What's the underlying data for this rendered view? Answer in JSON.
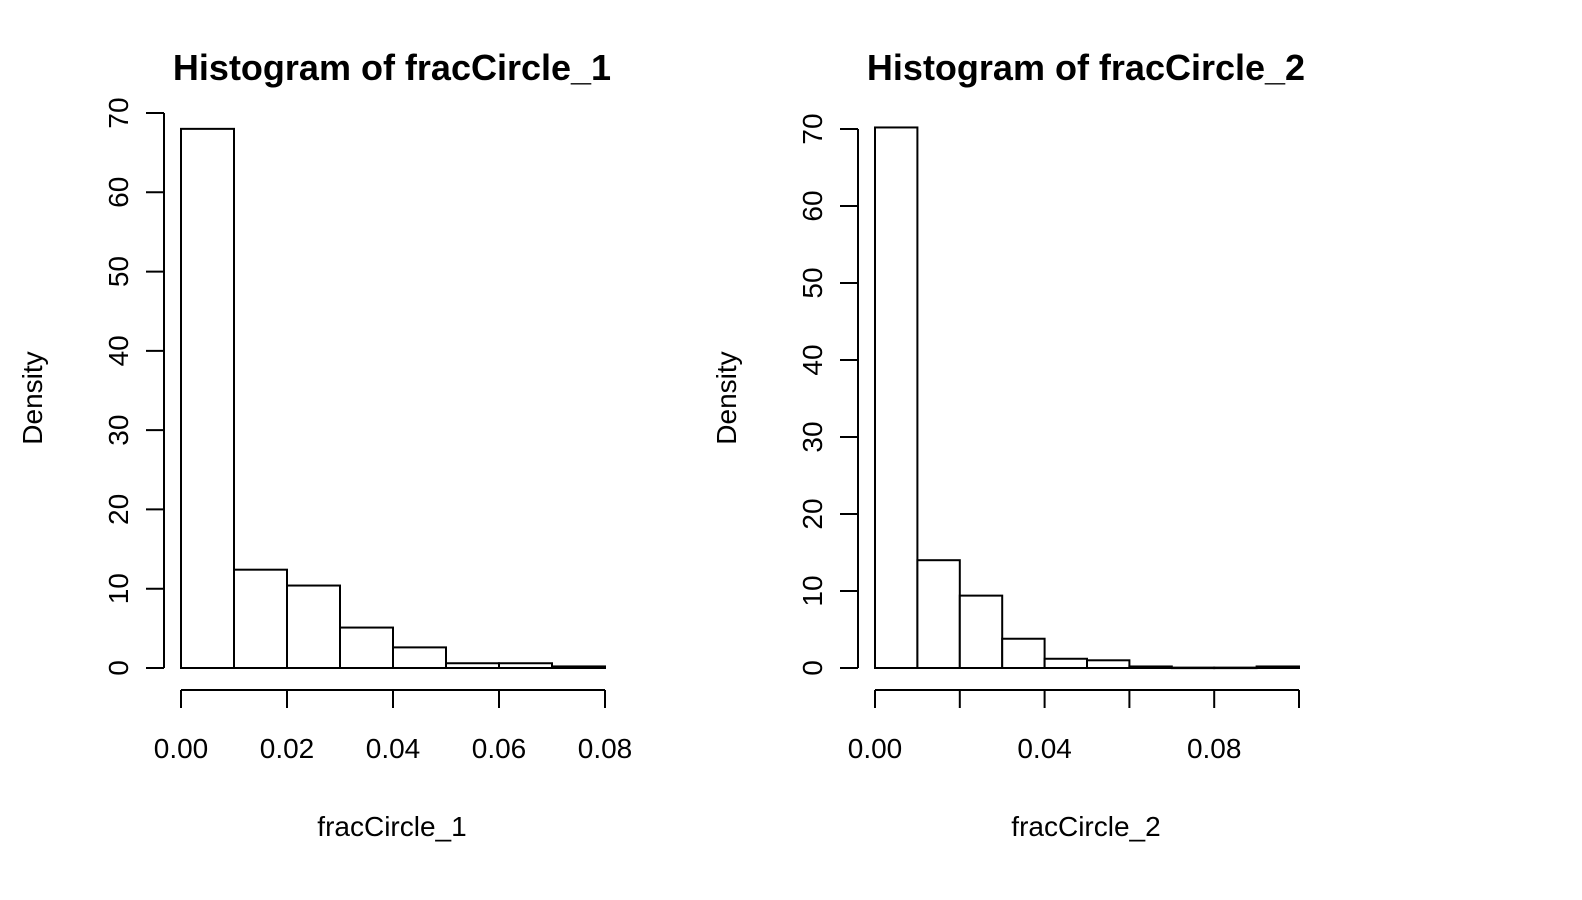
{
  "chart_data": [
    {
      "type": "bar",
      "title": "Histogram of fracCircle_1",
      "xlabel": "fracCircle_1",
      "ylabel": "Density",
      "xlim": [
        0,
        0.08
      ],
      "ylim": [
        0,
        70
      ],
      "xticks": [
        0,
        0.02,
        0.04,
        0.06,
        0.08
      ],
      "xtick_labels": [
        "0.00",
        "0.02",
        "0.04",
        "0.06",
        "0.08"
      ],
      "yticks": [
        0,
        10,
        20,
        30,
        40,
        50,
        60,
        70
      ],
      "ytick_labels": [
        "0",
        "10",
        "20",
        "30",
        "40",
        "50",
        "60",
        "70"
      ],
      "bins": [
        {
          "x0": 0.0,
          "x1": 0.01,
          "density": 68.0
        },
        {
          "x0": 0.01,
          "x1": 0.02,
          "density": 12.4
        },
        {
          "x0": 0.02,
          "x1": 0.03,
          "density": 10.4
        },
        {
          "x0": 0.03,
          "x1": 0.04,
          "density": 5.1
        },
        {
          "x0": 0.04,
          "x1": 0.05,
          "density": 2.6
        },
        {
          "x0": 0.05,
          "x1": 0.06,
          "density": 0.6
        },
        {
          "x0": 0.06,
          "x1": 0.07,
          "density": 0.6
        },
        {
          "x0": 0.07,
          "x1": 0.08,
          "density": 0.2
        }
      ],
      "grid": false
    },
    {
      "type": "bar",
      "title": "Histogram of fracCircle_2",
      "xlabel": "fracCircle_2",
      "ylabel": "Density",
      "xlim": [
        0,
        0.1
      ],
      "ylim": [
        0,
        70
      ],
      "xticks": [
        0,
        0.02,
        0.04,
        0.06,
        0.08,
        0.1
      ],
      "xtick_labels": [
        "0.00",
        "",
        "0.04",
        "",
        "0.08",
        ""
      ],
      "yticks": [
        0,
        10,
        20,
        30,
        40,
        50,
        60,
        70
      ],
      "ytick_labels": [
        "0",
        "10",
        "20",
        "30",
        "40",
        "50",
        "60",
        "70"
      ],
      "bins": [
        {
          "x0": 0.0,
          "x1": 0.01,
          "density": 70.2
        },
        {
          "x0": 0.01,
          "x1": 0.02,
          "density": 14.0
        },
        {
          "x0": 0.02,
          "x1": 0.03,
          "density": 9.4
        },
        {
          "x0": 0.03,
          "x1": 0.04,
          "density": 3.8
        },
        {
          "x0": 0.04,
          "x1": 0.05,
          "density": 1.2
        },
        {
          "x0": 0.05,
          "x1": 0.06,
          "density": 1.0
        },
        {
          "x0": 0.06,
          "x1": 0.07,
          "density": 0.2
        },
        {
          "x0": 0.07,
          "x1": 0.08,
          "density": 0.05
        },
        {
          "x0": 0.08,
          "x1": 0.09,
          "density": 0.05
        },
        {
          "x0": 0.09,
          "x1": 0.1,
          "density": 0.2
        }
      ],
      "grid": false
    }
  ]
}
